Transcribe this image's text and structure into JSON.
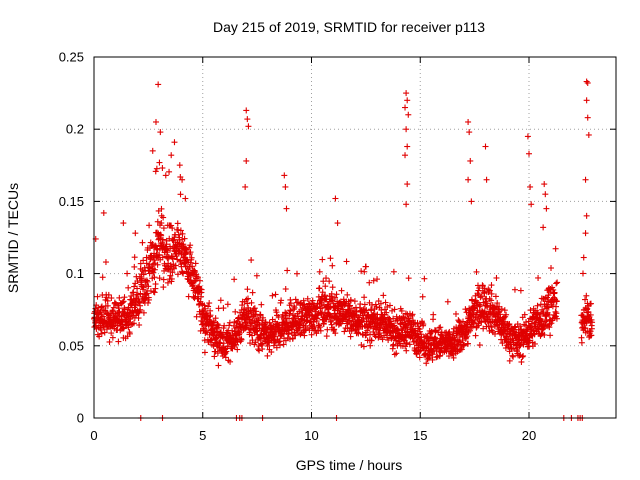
{
  "chart_data": {
    "type": "scatter",
    "title": "Day 215 of 2019, SRMTID for receiver p113",
    "xlabel": "GPS time / hours",
    "ylabel": "SRMTID / TECUs",
    "xlim": [
      0,
      24
    ],
    "ylim": [
      0,
      0.25
    ],
    "x_ticks": [
      0,
      5,
      10,
      15,
      20
    ],
    "x_tick_labels": [
      "0",
      "5",
      "10",
      "15",
      "20"
    ],
    "y_ticks": [
      0,
      0.05,
      0.1,
      0.15,
      0.2,
      0.25
    ],
    "y_tick_labels": [
      "0",
      "0.05",
      "0.1",
      "0.15",
      "0.2",
      "0.25"
    ],
    "grid": true,
    "marker": "+",
    "color": "#e00000",
    "series": [
      {
        "name": "SRMTID",
        "envelope": {
          "x": [
            0,
            0.5,
            1.0,
            1.5,
            2.0,
            2.5,
            3.0,
            3.5,
            4.0,
            4.5,
            5.0,
            5.5,
            6.0,
            6.5,
            7.0,
            7.5,
            8.0,
            8.5,
            9.0,
            9.5,
            10.0,
            10.5,
            11.0,
            11.5,
            12.0,
            12.5,
            13.0,
            13.5,
            14.0,
            14.5,
            15.0,
            15.5,
            16.0,
            16.5,
            17.0,
            17.5,
            18.0,
            18.5,
            19.0,
            19.5,
            20.0,
            20.5,
            21.0,
            21.5,
            22.5,
            22.9
          ],
          "center": [
            0.068,
            0.07,
            0.068,
            0.072,
            0.082,
            0.095,
            0.12,
            0.112,
            0.118,
            0.1,
            0.072,
            0.058,
            0.05,
            0.058,
            0.07,
            0.062,
            0.055,
            0.06,
            0.068,
            0.066,
            0.072,
            0.074,
            0.075,
            0.072,
            0.068,
            0.066,
            0.068,
            0.062,
            0.06,
            0.062,
            0.055,
            0.05,
            0.052,
            0.05,
            0.06,
            0.072,
            0.08,
            0.07,
            0.058,
            0.052,
            0.06,
            0.068,
            0.08,
            0.072,
            0.068,
            0.07
          ],
          "spread": [
            0.022,
            0.024,
            0.022,
            0.024,
            0.028,
            0.032,
            0.042,
            0.036,
            0.038,
            0.034,
            0.028,
            0.024,
            0.02,
            0.022,
            0.026,
            0.024,
            0.022,
            0.024,
            0.026,
            0.024,
            0.026,
            0.026,
            0.026,
            0.024,
            0.024,
            0.024,
            0.024,
            0.022,
            0.024,
            0.024,
            0.022,
            0.022,
            0.02,
            0.02,
            0.022,
            0.028,
            0.03,
            0.026,
            0.024,
            0.022,
            0.024,
            0.026,
            0.03,
            0.026,
            0.026,
            0.028
          ]
        },
        "outliers": [
          [
            0.08,
            0.124
          ],
          [
            0.45,
            0.142
          ],
          [
            0.55,
            0.108
          ],
          [
            1.35,
            0.135
          ],
          [
            1.9,
            0.128
          ],
          [
            2.7,
            0.185
          ],
          [
            2.85,
            0.205
          ],
          [
            2.95,
            0.231
          ],
          [
            3.05,
            0.198
          ],
          [
            3.3,
            0.168
          ],
          [
            3.55,
            0.182
          ],
          [
            3.7,
            0.191
          ],
          [
            4.05,
            0.165
          ],
          [
            4.2,
            0.152
          ],
          [
            7.0,
            0.213
          ],
          [
            7.05,
            0.207
          ],
          [
            7.1,
            0.202
          ],
          [
            7.0,
            0.178
          ],
          [
            6.95,
            0.16
          ],
          [
            8.75,
            0.168
          ],
          [
            8.8,
            0.16
          ],
          [
            8.85,
            0.145
          ],
          [
            11.1,
            0.152
          ],
          [
            11.2,
            0.135
          ],
          [
            14.35,
            0.225
          ],
          [
            14.4,
            0.22
          ],
          [
            14.3,
            0.215
          ],
          [
            14.45,
            0.21
          ],
          [
            14.35,
            0.2
          ],
          [
            14.4,
            0.188
          ],
          [
            14.3,
            0.182
          ],
          [
            14.4,
            0.162
          ],
          [
            14.35,
            0.148
          ],
          [
            17.2,
            0.205
          ],
          [
            17.25,
            0.198
          ],
          [
            17.3,
            0.178
          ],
          [
            17.2,
            0.165
          ],
          [
            17.35,
            0.15
          ],
          [
            18.0,
            0.188
          ],
          [
            18.05,
            0.165
          ],
          [
            19.95,
            0.195
          ],
          [
            20.0,
            0.183
          ],
          [
            20.05,
            0.16
          ],
          [
            20.1,
            0.148
          ],
          [
            20.7,
            0.162
          ],
          [
            20.75,
            0.155
          ],
          [
            20.8,
            0.145
          ],
          [
            20.65,
            0.132
          ],
          [
            22.65,
            0.233
          ],
          [
            22.7,
            0.232
          ],
          [
            22.65,
            0.22
          ],
          [
            22.7,
            0.208
          ],
          [
            22.75,
            0.196
          ],
          [
            22.6,
            0.165
          ],
          [
            22.65,
            0.14
          ],
          [
            22.6,
            0.128
          ]
        ],
        "zero_points_x": [
          2.15,
          3.15,
          6.55,
          6.7,
          6.8,
          7.75,
          11.15,
          21.6,
          21.95,
          22.25,
          22.35,
          22.45
        ]
      }
    ]
  }
}
